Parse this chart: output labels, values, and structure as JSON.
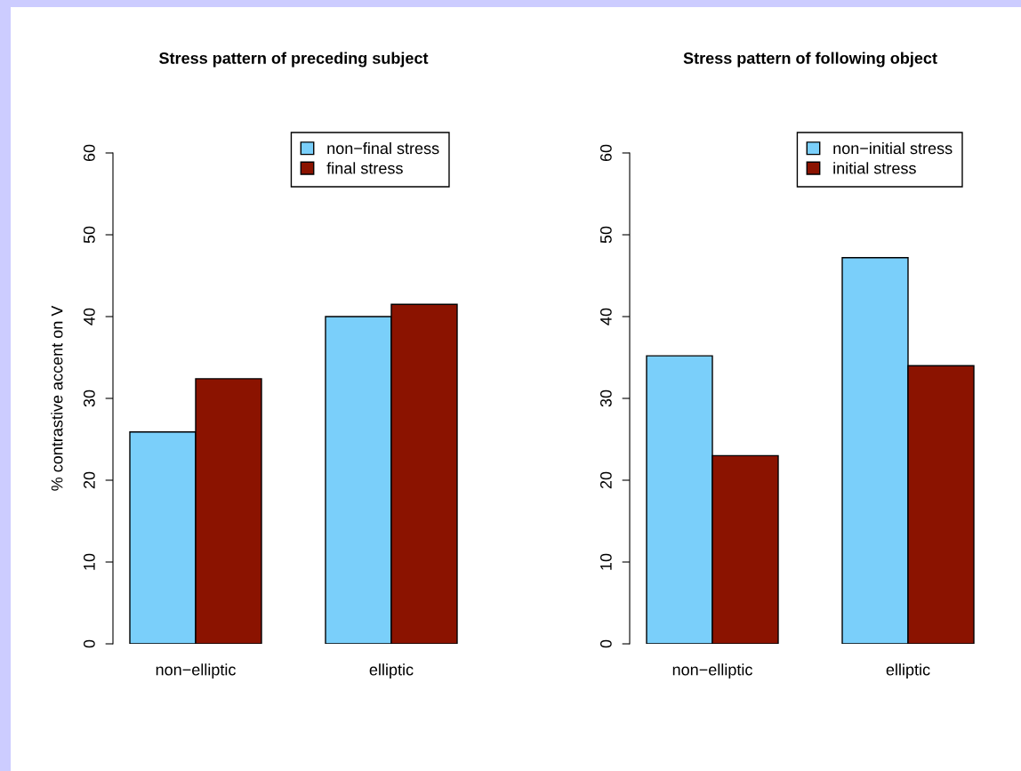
{
  "chart_data": [
    {
      "type": "bar",
      "title": "Stress pattern of preceding subject",
      "ylabel": "% contrastive accent on V",
      "categories": [
        "non−elliptic",
        "elliptic"
      ],
      "ylim": [
        0,
        60
      ],
      "yticks": [
        0,
        10,
        20,
        30,
        40,
        50,
        60
      ],
      "legend": "top right",
      "grid": false,
      "series": [
        {
          "name": "non−final stress",
          "color": "#7acffa",
          "values": [
            25.9,
            40.0
          ]
        },
        {
          "name": "final stress",
          "color": "#8b1300",
          "values": [
            32.4,
            41.5
          ]
        }
      ]
    },
    {
      "type": "bar",
      "title": "Stress pattern of following object",
      "categories": [
        "non−elliptic",
        "elliptic"
      ],
      "ylim": [
        0,
        60
      ],
      "yticks": [
        0,
        10,
        20,
        30,
        40,
        50,
        60
      ],
      "legend": "top right",
      "grid": false,
      "series": [
        {
          "name": "non−initial stress",
          "color": "#7acffa",
          "values": [
            35.2,
            47.2
          ]
        },
        {
          "name": "initial stress",
          "color": "#8b1300",
          "values": [
            23.0,
            34.0
          ]
        }
      ]
    }
  ]
}
